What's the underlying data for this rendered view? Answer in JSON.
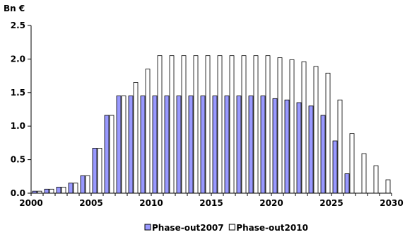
{
  "chart_data": {
    "type": "bar",
    "title": "",
    "ylabel": "Bn €",
    "xlabel": "",
    "ylim": [
      0,
      2.5
    ],
    "yticks": [
      "0.0",
      "0.5",
      "1.0",
      "1.5",
      "2.0",
      "2.5"
    ],
    "xticks": [
      "2000",
      "2005",
      "2010",
      "2015",
      "2020",
      "2025",
      "2030"
    ],
    "grid": false,
    "legend_position": "bottom",
    "categories": [
      2000,
      2001,
      2002,
      2003,
      2004,
      2005,
      2006,
      2007,
      2008,
      2009,
      2010,
      2011,
      2012,
      2013,
      2014,
      2015,
      2016,
      2017,
      2018,
      2019,
      2020,
      2021,
      2022,
      2023,
      2024,
      2025,
      2026,
      2027,
      2028,
      2029
    ],
    "series": [
      {
        "name": "Phase-out2007",
        "color": "#9999ff",
        "values": [
          0.03,
          0.06,
          0.09,
          0.15,
          0.26,
          0.67,
          1.16,
          1.45,
          1.45,
          1.45,
          1.45,
          1.45,
          1.45,
          1.45,
          1.45,
          1.45,
          1.45,
          1.45,
          1.45,
          1.45,
          1.41,
          1.39,
          1.35,
          1.3,
          1.16,
          0.78,
          0.29,
          0,
          0,
          0
        ]
      },
      {
        "name": "Phase-out2010",
        "color": "#ffffff",
        "values": [
          0.03,
          0.06,
          0.09,
          0.15,
          0.26,
          0.67,
          1.16,
          1.45,
          1.65,
          1.85,
          2.05,
          2.05,
          2.05,
          2.05,
          2.05,
          2.05,
          2.05,
          2.05,
          2.05,
          2.05,
          2.02,
          1.99,
          1.96,
          1.89,
          1.79,
          1.39,
          0.89,
          0.59,
          0.41,
          0.2
        ]
      }
    ]
  }
}
